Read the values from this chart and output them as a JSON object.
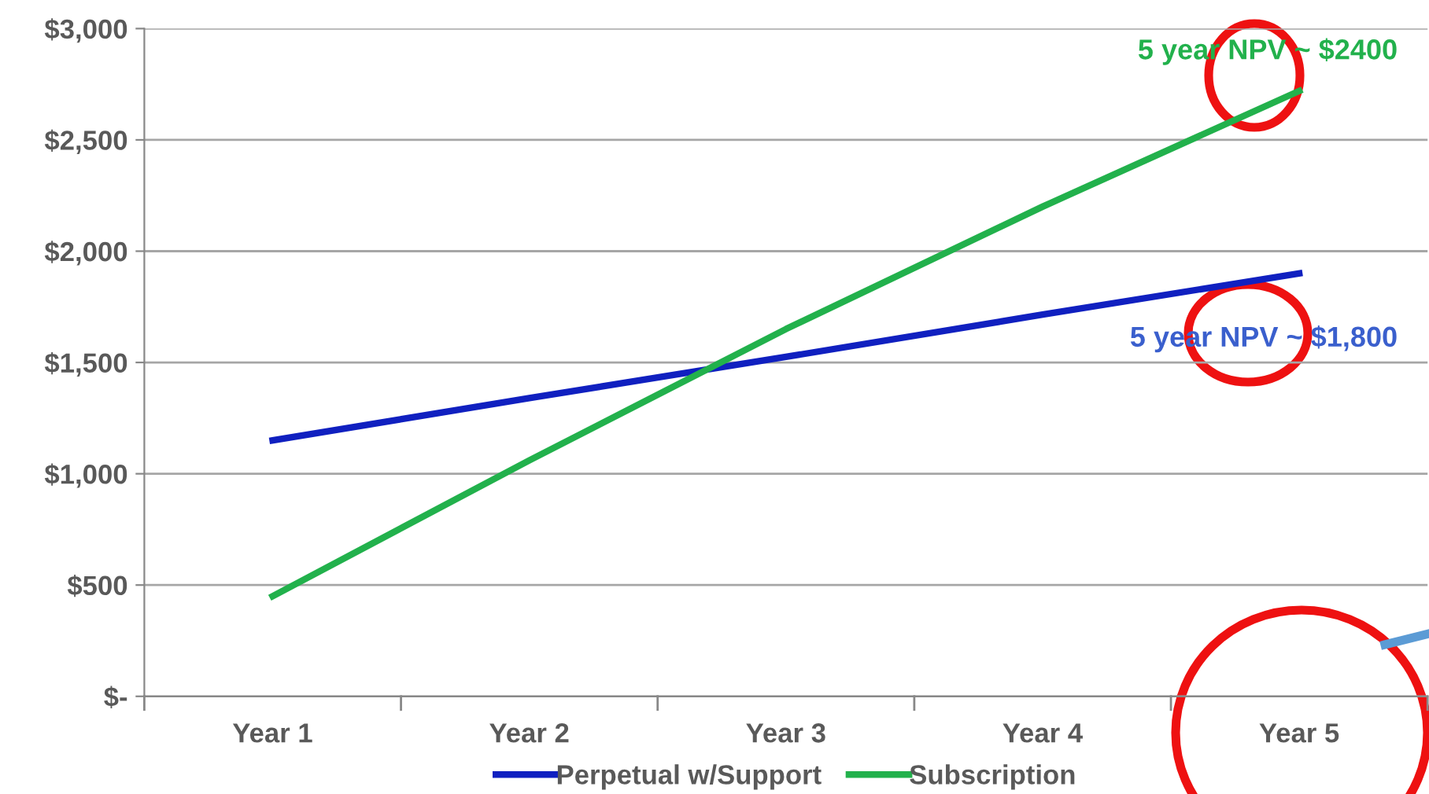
{
  "chart_data": {
    "type": "line",
    "categories": [
      "Year 1",
      "Year 2",
      "Year 3",
      "Year 4",
      "Year 5"
    ],
    "series": [
      {
        "name": "Perpetual w/Support",
        "color": "#1020c0",
        "values": [
          1150,
          1340,
          1525,
          1715,
          1900
        ]
      },
      {
        "name": "Subscription",
        "color": "#22b14c",
        "values": [
          450,
          1060,
          1650,
          2200,
          2720
        ]
      }
    ],
    "ylim": [
      0,
      3000
    ],
    "yticks": [
      {
        "value": 0,
        "label": "$-"
      },
      {
        "value": 500,
        "label": "$500"
      },
      {
        "value": 1000,
        "label": "$1,000"
      },
      {
        "value": 1500,
        "label": "$1,500"
      },
      {
        "value": 2000,
        "label": "$2,000"
      },
      {
        "value": 2500,
        "label": "$2,500"
      },
      {
        "value": 3000,
        "label": "$3,000"
      }
    ],
    "grid": "y",
    "legend": "bottom",
    "marker": "none",
    "line_style": "solid",
    "annotations": [
      {
        "text": "5 year NPV ~ $2400",
        "x": "Year 5",
        "y": 2720
      },
      {
        "text": "5 year NPV ~ $1,800",
        "x": "Year 5",
        "y": 1900
      }
    ]
  }
}
